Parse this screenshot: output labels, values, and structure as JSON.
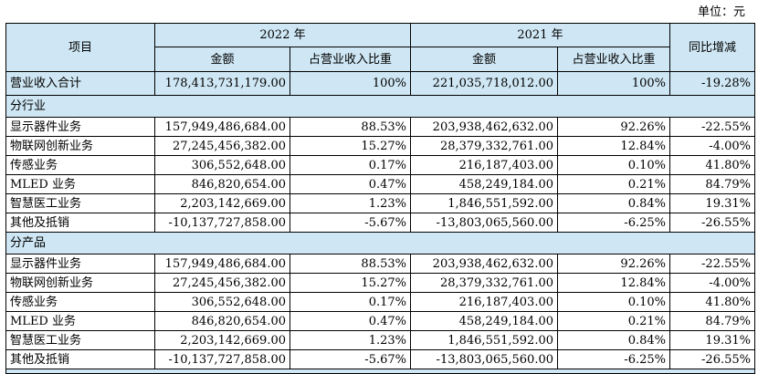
{
  "unit_label": "单位：元",
  "headers": {
    "item": "项目",
    "year_2022": "2022 年",
    "year_2021": "2021 年",
    "yoy": "同比增减",
    "amount": "金额",
    "ratio": "占营业收入比重"
  },
  "total": {
    "name": "营业收入合计",
    "amt2022": "178,413,731,179.00",
    "ratio2022": "100%",
    "amt2021": "221,035,718,012.00",
    "ratio2021": "100%",
    "yoy": "-19.28%"
  },
  "sections": [
    {
      "title": "分行业",
      "rows": [
        {
          "name": "显示器件业务",
          "amt2022": "157,949,486,684.00",
          "ratio2022": "88.53%",
          "amt2021": "203,938,462,632.00",
          "ratio2021": "92.26%",
          "yoy": "-22.55%"
        },
        {
          "name": "物联网创新业务",
          "amt2022": "27,245,456,382.00",
          "ratio2022": "15.27%",
          "amt2021": "28,379,332,761.00",
          "ratio2021": "12.84%",
          "yoy": "-4.00%"
        },
        {
          "name": "传感业务",
          "amt2022": "306,552,648.00",
          "ratio2022": "0.17%",
          "amt2021": "216,187,403.00",
          "ratio2021": "0.10%",
          "yoy": "41.80%"
        },
        {
          "name": "MLED 业务",
          "amt2022": "846,820,654.00",
          "ratio2022": "0.47%",
          "amt2021": "458,249,184.00",
          "ratio2021": "0.21%",
          "yoy": "84.79%"
        },
        {
          "name": "智慧医工业务",
          "amt2022": "2,203,142,669.00",
          "ratio2022": "1.23%",
          "amt2021": "1,846,551,592.00",
          "ratio2021": "0.84%",
          "yoy": "19.31%"
        },
        {
          "name": "其他及抵销",
          "amt2022": "-10,137,727,858.00",
          "ratio2022": "-5.67%",
          "amt2021": "-13,803,065,560.00",
          "ratio2021": "-6.25%",
          "yoy": "-26.55%"
        }
      ]
    },
    {
      "title": "分产品",
      "rows": [
        {
          "name": "显示器件业务",
          "amt2022": "157,949,486,684.00",
          "ratio2022": "88.53%",
          "amt2021": "203,938,462,632.00",
          "ratio2021": "92.26%",
          "yoy": "-22.55%"
        },
        {
          "name": "物联网创新业务",
          "amt2022": "27,245,456,382.00",
          "ratio2022": "15.27%",
          "amt2021": "28,379,332,761.00",
          "ratio2021": "12.84%",
          "yoy": "-4.00%"
        },
        {
          "name": "传感业务",
          "amt2022": "306,552,648.00",
          "ratio2022": "0.17%",
          "amt2021": "216,187,403.00",
          "ratio2021": "0.10%",
          "yoy": "41.80%"
        },
        {
          "name": "MLED 业务",
          "amt2022": "846,820,654.00",
          "ratio2022": "0.47%",
          "amt2021": "458,249,184.00",
          "ratio2021": "0.21%",
          "yoy": "84.79%"
        },
        {
          "name": "智慧医工业务",
          "amt2022": "2,203,142,669.00",
          "ratio2022": "1.23%",
          "amt2021": "1,846,551,592.00",
          "ratio2021": "0.84%",
          "yoy": "19.31%"
        },
        {
          "name": "其他及抵销",
          "amt2022": "-10,137,727,858.00",
          "ratio2022": "-5.67%",
          "amt2021": "-13,803,065,560.00",
          "ratio2021": "-6.25%",
          "yoy": "-26.55%"
        }
      ]
    }
  ]
}
